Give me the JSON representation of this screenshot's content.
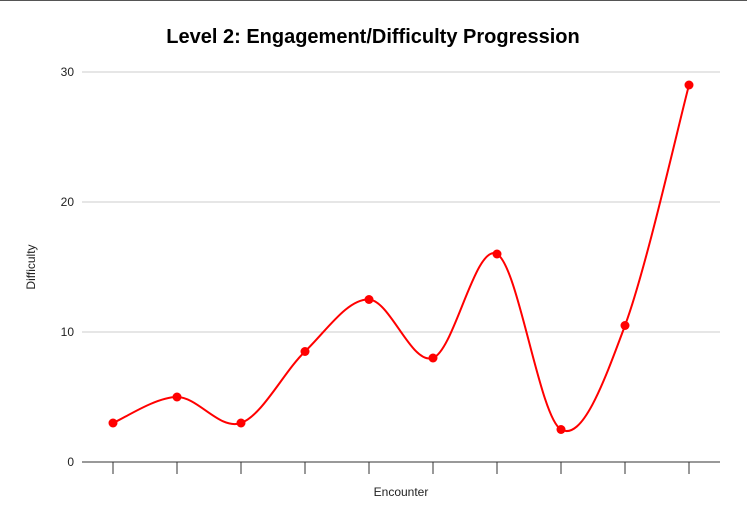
{
  "chart_data": {
    "type": "line",
    "title": "Level 2: Engagement/Difficulty Progression",
    "xlabel": "Encounter",
    "ylabel": "Difficulty",
    "ylim": [
      0,
      30
    ],
    "yticks": [
      "0",
      "10",
      "20",
      "30"
    ],
    "grid": true,
    "smooth": true,
    "series": [
      {
        "color": "#ff0000",
        "values": [
          3,
          5,
          3,
          8.5,
          12.5,
          8,
          16,
          2.5,
          10.5,
          29
        ]
      }
    ]
  }
}
